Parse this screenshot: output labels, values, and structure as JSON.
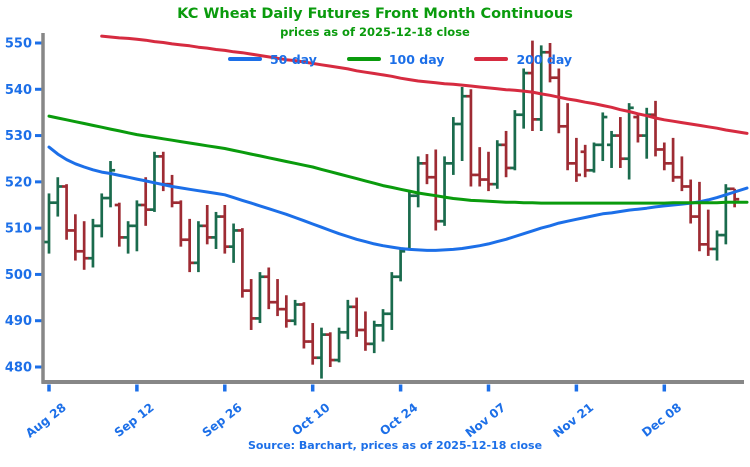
{
  "header": {
    "title": "KC Wheat Daily Futures Front Month Continuous",
    "subtitle": "prices as of 2025-12-18 close"
  },
  "legend": [
    {
      "label": "50 day",
      "color": "#1c6fe8"
    },
    {
      "label": "100 day",
      "color": "#0a9b0d"
    },
    {
      "label": "200 day",
      "color": "#d62b40"
    }
  ],
  "footer": {
    "source_note": "Source: Barchart, prices as of 2025-12-18 close"
  },
  "colors": {
    "title_green": "#0a9b0d",
    "axis_label_blue": "#1c6fe8",
    "axis_gray": "#878787",
    "bar_up_green": "#1a6b4d",
    "bar_down_red": "#9e2b33",
    "ma50_blue": "#1c6fe8",
    "ma100_green": "#0a9b0d",
    "ma200_red": "#d62b40",
    "background": "#ffffff"
  },
  "chart_data": {
    "type": "ohlc-bar",
    "title": "KC Wheat Daily Futures Front Month Continuous",
    "subtitle": "prices as of 2025-12-18 close",
    "xlabel": "",
    "ylabel": "",
    "grid": false,
    "legend_position": "top-center",
    "ylim": [
      476,
      551.5
    ],
    "y_axis": {
      "ticks": [
        550,
        540,
        530,
        520,
        510,
        500,
        490,
        480
      ]
    },
    "x_axis": {
      "tick_labels": [
        "Aug 28",
        "Sep 12",
        "Sep 26",
        "Oct 10",
        "Oct 24",
        "Nov 07",
        "Nov 21",
        "Dec 08"
      ],
      "tick_indices": [
        0,
        10,
        20,
        30,
        40,
        50,
        60,
        70
      ]
    },
    "dates": [
      "Aug 28",
      "Aug 29",
      "Sep 02",
      "Sep 03",
      "Sep 04",
      "Sep 05",
      "Sep 08",
      "Sep 09",
      "Sep 10",
      "Sep 11",
      "Sep 12",
      "Sep 15",
      "Sep 16",
      "Sep 17",
      "Sep 18",
      "Sep 19",
      "Sep 22",
      "Sep 23",
      "Sep 24",
      "Sep 25",
      "Sep 26",
      "Sep 29",
      "Sep 30",
      "Oct 01",
      "Oct 02",
      "Oct 03",
      "Oct 06",
      "Oct 07",
      "Oct 08",
      "Oct 09",
      "Oct 10",
      "Oct 13",
      "Oct 14",
      "Oct 15",
      "Oct 16",
      "Oct 17",
      "Oct 20",
      "Oct 21",
      "Oct 22",
      "Oct 23",
      "Oct 24",
      "Oct 27",
      "Oct 28",
      "Oct 29",
      "Oct 30",
      "Oct 31",
      "Nov 03",
      "Nov 04",
      "Nov 05",
      "Nov 06",
      "Nov 07",
      "Nov 10",
      "Nov 11",
      "Nov 12",
      "Nov 13",
      "Nov 14",
      "Nov 17",
      "Nov 18",
      "Nov 19",
      "Nov 20",
      "Nov 21",
      "Nov 24",
      "Nov 25",
      "Nov 26",
      "Nov 28",
      "Dec 01",
      "Dec 02",
      "Dec 03",
      "Dec 04",
      "Dec 05",
      "Dec 08",
      "Dec 09",
      "Dec 10",
      "Dec 11",
      "Dec 12",
      "Dec 15",
      "Dec 16",
      "Dec 17",
      "Dec 18"
    ],
    "ohlc": [
      [
        507,
        517.5,
        504.5,
        515.5
      ],
      [
        515.5,
        521,
        512.5,
        519
      ],
      [
        519,
        519.5,
        507.5,
        509.5
      ],
      [
        509.5,
        513,
        503,
        505
      ],
      [
        505,
        511.5,
        501,
        503.5
      ],
      [
        503.5,
        512,
        501.5,
        510.5
      ],
      [
        510.5,
        517.5,
        508,
        516.5
      ],
      [
        516.5,
        524.5,
        514.5,
        522.5
      ],
      [
        515,
        515.5,
        506,
        508
      ],
      [
        508,
        511.5,
        504.5,
        510.5
      ],
      [
        510.5,
        516,
        505,
        515
      ],
      [
        515,
        521,
        510.5,
        514
      ],
      [
        514,
        526.5,
        513.5,
        525.5
      ],
      [
        525.5,
        526.5,
        518,
        519.5
      ],
      [
        519.5,
        521.5,
        514.5,
        515.5
      ],
      [
        515.5,
        516,
        506,
        507.5
      ],
      [
        507.5,
        512,
        500.5,
        502.5
      ],
      [
        502.5,
        511.5,
        500.5,
        510.5
      ],
      [
        510.5,
        515,
        506.5,
        508
      ],
      [
        508,
        513.5,
        505.5,
        512.5
      ],
      [
        512.5,
        515,
        504.5,
        506
      ],
      [
        506,
        511,
        502.5,
        509.5
      ],
      [
        509.5,
        510,
        495,
        496.5
      ],
      [
        496.5,
        499,
        488,
        490.5
      ],
      [
        490.5,
        500.5,
        489.5,
        499.5
      ],
      [
        499.5,
        501.5,
        492.5,
        494
      ],
      [
        494,
        499,
        491,
        492.5
      ],
      [
        492.5,
        495.5,
        488.5,
        490
      ],
      [
        490,
        494.5,
        489,
        493.5
      ],
      [
        493.5,
        494,
        484,
        485.5
      ],
      [
        485.5,
        489.5,
        480.5,
        482
      ],
      [
        482,
        488.5,
        477.5,
        487
      ],
      [
        487,
        487.5,
        480,
        481.5
      ],
      [
        481.5,
        488.5,
        481,
        487.5
      ],
      [
        487.5,
        494.5,
        486,
        493
      ],
      [
        493,
        495,
        486.5,
        488
      ],
      [
        488,
        492,
        483.5,
        485
      ],
      [
        485,
        490,
        483,
        489
      ],
      [
        489,
        492.5,
        485.5,
        491.5
      ],
      [
        491.5,
        500.5,
        488,
        499.5
      ],
      [
        499.5,
        505.5,
        498.5,
        505
      ],
      [
        505.5,
        518,
        505.5,
        517
      ],
      [
        517,
        525.5,
        514.5,
        524
      ],
      [
        524,
        526,
        519.5,
        521
      ],
      [
        521,
        527,
        509.5,
        511.5
      ],
      [
        511.5,
        525.5,
        510.5,
        524
      ],
      [
        524,
        534,
        521.5,
        532.5
      ],
      [
        532.5,
        540.5,
        524.5,
        538.5
      ],
      [
        538.5,
        540,
        519,
        521.5
      ],
      [
        521.5,
        527.5,
        519,
        520.5
      ],
      [
        520.5,
        526.5,
        518,
        519.5
      ],
      [
        519.5,
        529,
        518.5,
        528
      ],
      [
        528,
        531,
        521,
        523
      ],
      [
        523,
        535.5,
        522.5,
        534.5
      ],
      [
        534.5,
        544.5,
        531.5,
        543.5
      ],
      [
        543.5,
        550.5,
        531,
        533.5
      ],
      [
        533.5,
        549.5,
        531,
        548
      ],
      [
        548,
        550,
        541.5,
        542.5
      ],
      [
        542.5,
        544.5,
        530.5,
        532
      ],
      [
        532,
        537,
        522.5,
        524
      ],
      [
        524,
        529.5,
        520,
        521.5
      ],
      [
        526.5,
        528,
        521,
        522.5
      ],
      [
        522.5,
        528.5,
        522,
        528
      ],
      [
        528,
        535,
        524.5,
        534
      ],
      [
        528,
        531,
        523,
        530
      ],
      [
        530,
        534,
        523,
        525
      ],
      [
        525,
        537,
        520.5,
        536
      ],
      [
        534,
        534.5,
        528.5,
        530
      ],
      [
        530,
        536,
        525,
        534.5
      ],
      [
        534.5,
        537.5,
        525.5,
        527
      ],
      [
        527,
        528.5,
        522.5,
        524
      ],
      [
        524,
        529.5,
        520,
        521
      ],
      [
        521,
        525.5,
        518,
        519
      ],
      [
        519,
        520.5,
        511,
        512.5
      ],
      [
        512.5,
        520,
        505,
        506.5
      ],
      [
        506.5,
        514,
        504,
        505.5
      ],
      [
        505.5,
        509.5,
        503,
        508.5
      ],
      [
        508.5,
        519.5,
        506.5,
        518.5
      ],
      [
        518.5,
        518.5,
        514.5,
        516.25
      ]
    ],
    "series": [
      {
        "name": "50 day",
        "color": "#1c6fe8",
        "values": [
          527.5,
          526.0,
          524.8,
          523.9,
          523.2,
          522.6,
          522.1,
          521.8,
          521.4,
          521.0,
          520.6,
          520.2,
          519.8,
          519.4,
          519.0,
          518.7,
          518.4,
          518.1,
          517.8,
          517.5,
          517.2,
          516.6,
          516.0,
          515.4,
          514.8,
          514.2,
          513.6,
          513.0,
          512.3,
          511.6,
          510.9,
          510.2,
          509.5,
          508.8,
          508.2,
          507.6,
          507.1,
          506.6,
          506.2,
          505.9,
          505.6,
          505.4,
          505.3,
          505.2,
          505.2,
          505.3,
          505.4,
          505.6,
          505.9,
          506.2,
          506.6,
          507.1,
          507.6,
          508.2,
          508.8,
          509.4,
          510.0,
          510.5,
          511.1,
          511.5,
          511.9,
          512.3,
          512.7,
          513.1,
          513.3,
          513.6,
          513.9,
          514.1,
          514.3,
          514.6,
          514.8,
          515.0,
          515.2,
          515.4,
          515.7,
          516.1,
          516.6,
          517.2,
          517.8
        ]
      },
      {
        "name": "100 day",
        "color": "#0a9b0d",
        "values": [
          534.2,
          533.8,
          533.4,
          533.0,
          532.6,
          532.2,
          531.8,
          531.4,
          531.0,
          530.6,
          530.2,
          529.9,
          529.6,
          529.3,
          529.0,
          528.7,
          528.4,
          528.1,
          527.8,
          527.5,
          527.2,
          526.8,
          526.4,
          526.0,
          525.6,
          525.2,
          524.8,
          524.4,
          524.0,
          523.6,
          523.2,
          522.7,
          522.2,
          521.7,
          521.2,
          520.7,
          520.2,
          519.7,
          519.2,
          518.8,
          518.4,
          518.0,
          517.6,
          517.3,
          517.0,
          516.7,
          516.4,
          516.2,
          516.0,
          515.9,
          515.8,
          515.7,
          515.6,
          515.6,
          515.5,
          515.5,
          515.4,
          515.4,
          515.4,
          515.4,
          515.4,
          515.4,
          515.4,
          515.4,
          515.4,
          515.4,
          515.4,
          515.4,
          515.4,
          515.4,
          515.4,
          515.5,
          515.5,
          515.5,
          515.5,
          515.5,
          515.5,
          515.6,
          515.6
        ]
      },
      {
        "name": "200 day",
        "color": "#d62b40",
        "values": [
          null,
          null,
          null,
          null,
          null,
          null,
          551.5,
          551.3,
          551.1,
          551.0,
          550.8,
          550.6,
          550.3,
          550.1,
          549.8,
          549.6,
          549.4,
          549.1,
          548.9,
          548.6,
          548.4,
          548.1,
          547.9,
          547.6,
          547.3,
          547.0,
          546.7,
          546.4,
          546.2,
          545.9,
          545.6,
          545.3,
          545.0,
          544.7,
          544.4,
          544.0,
          543.7,
          543.4,
          543.1,
          542.8,
          542.4,
          542.1,
          541.8,
          541.6,
          541.4,
          541.2,
          541.1,
          540.9,
          540.7,
          540.5,
          540.3,
          540.1,
          539.9,
          539.8,
          539.6,
          539.4,
          539.0,
          538.7,
          538.3,
          537.9,
          537.6,
          537.2,
          536.9,
          536.5,
          536.1,
          535.6,
          535.2,
          534.7,
          534.3,
          533.8,
          533.4,
          533.1,
          532.8,
          532.5,
          532.2,
          531.9,
          531.6,
          531.2,
          530.9
        ]
      }
    ],
    "last_close": 516.25
  }
}
